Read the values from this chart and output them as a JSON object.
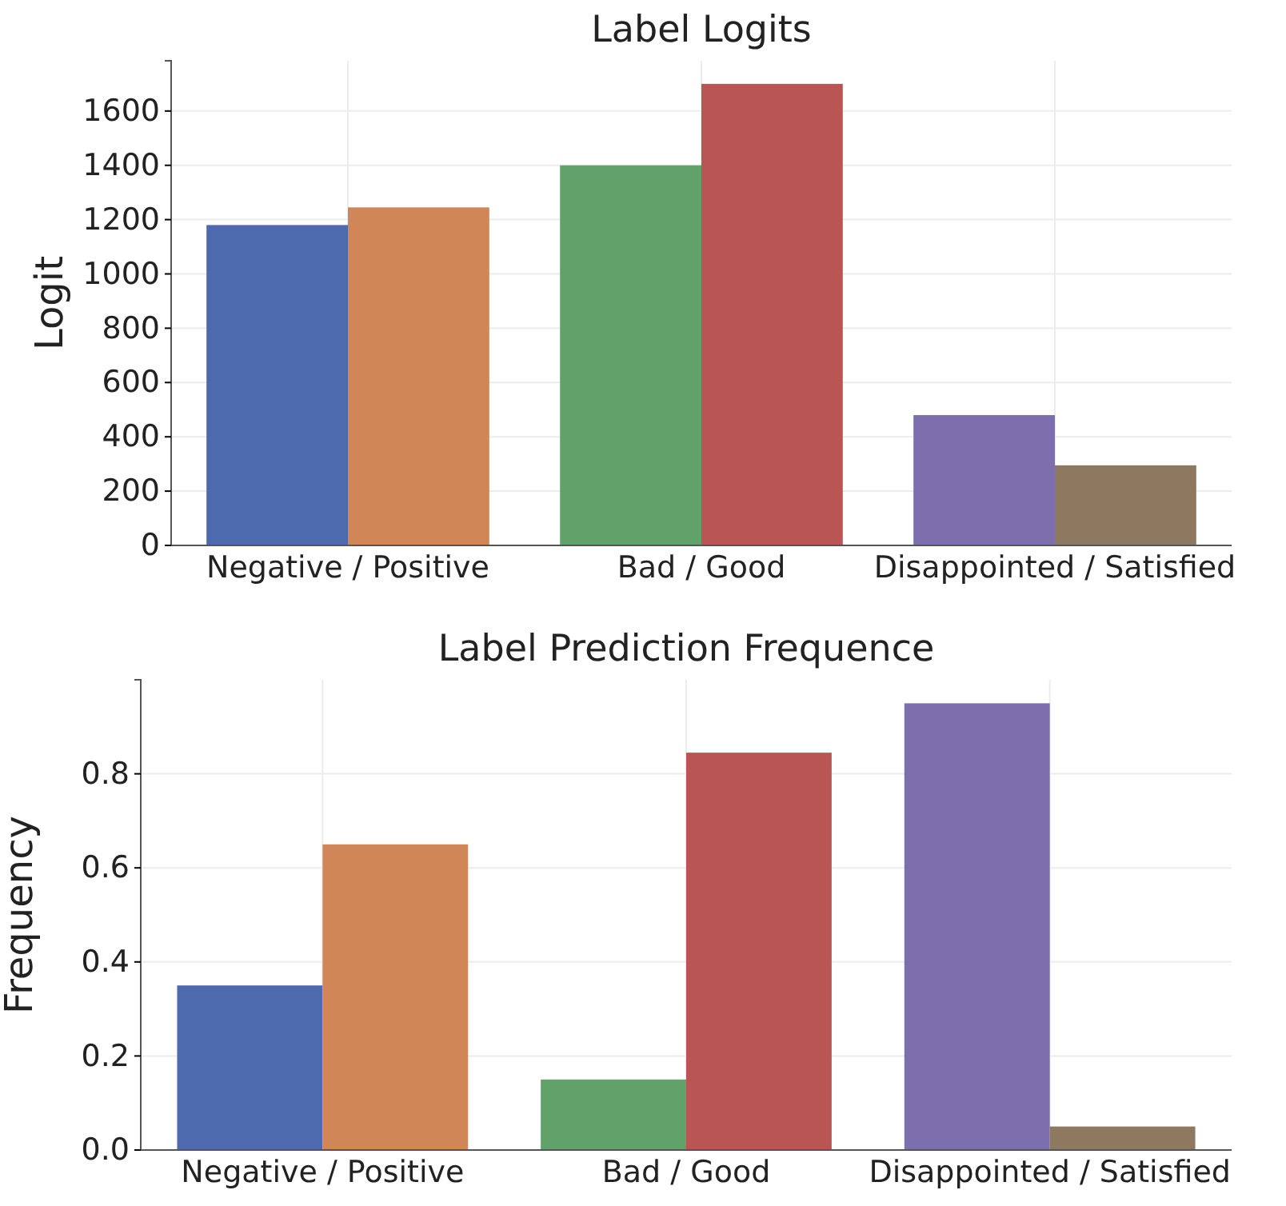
{
  "chart_data": [
    {
      "type": "bar",
      "title": "Label Logits",
      "ylabel": "Logit",
      "categories": [
        "Negative / Positive",
        "Bad / Good",
        "Disappointed / Satisfied"
      ],
      "series": [
        {
          "colors": [
            "#4c6aad",
            "#60a26a",
            "#7d6fae"
          ],
          "values": [
            1180,
            1400,
            480
          ]
        },
        {
          "colors": [
            "#d08656",
            "#b95553",
            "#8c7960"
          ],
          "values": [
            1245,
            1700,
            295
          ]
        }
      ],
      "ylim": [
        0,
        1785
      ],
      "yticks": [
        0,
        200,
        400,
        600,
        800,
        1000,
        1200,
        1400,
        1600
      ],
      "grid": true
    },
    {
      "type": "bar",
      "title": "Label Prediction Frequence",
      "ylabel": "Frequency",
      "categories": [
        "Negative / Positive",
        "Bad / Good",
        "Disappointed / Satisfied"
      ],
      "series": [
        {
          "colors": [
            "#4c6aad",
            "#60a26a",
            "#7d6fae"
          ],
          "values": [
            0.35,
            0.15,
            0.95
          ]
        },
        {
          "colors": [
            "#d08656",
            "#b95553",
            "#8c7960"
          ],
          "values": [
            0.65,
            0.845,
            0.05
          ]
        }
      ],
      "ylim": [
        0,
        1.0
      ],
      "yticks": [
        {
          "value": 0,
          "label": "0.0"
        },
        {
          "value": 0.2,
          "label": "0.2"
        },
        {
          "value": 0.4,
          "label": "0.4"
        },
        {
          "value": 0.6,
          "label": "0.6"
        },
        {
          "value": 0.8,
          "label": "0.8"
        }
      ],
      "grid": true
    }
  ]
}
